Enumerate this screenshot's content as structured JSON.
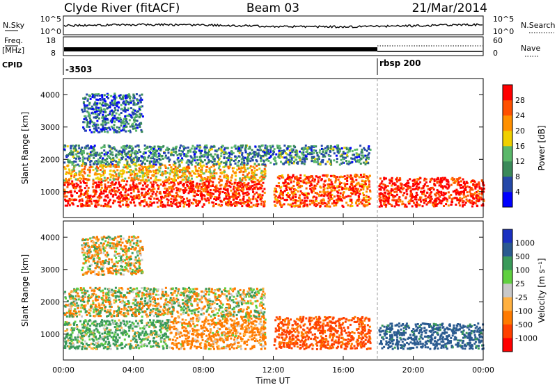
{
  "header": {
    "station": "Clyde River (fitACF)",
    "beam": "Beam 03",
    "date": "21/Mar/2014"
  },
  "status_panel": {
    "nsky_label": "N.Sky",
    "nsearch_label": "N.Search",
    "nsky_ticks": [
      "10^5",
      "10^0"
    ],
    "nsearch_ticks": [
      "10^5",
      "10^0"
    ],
    "freq_label_line1": "Freq.",
    "freq_label_line2": "[MHz]",
    "freq_ticks": [
      "18",
      "8"
    ],
    "nave_label": "Nave",
    "nave_ticks": [
      "60",
      "0"
    ],
    "cpid_label": "CPID",
    "cpid_segments": [
      {
        "start_hour": 0,
        "label": "-3503"
      },
      {
        "start_hour": 18,
        "label": "rbsp 200"
      }
    ]
  },
  "colors": {
    "power_scale": [
      "#0000ff",
      "#2548a8",
      "#3a8a5a",
      "#5ab86a",
      "#f0d000",
      "#ff9000",
      "#ff5000",
      "#ff0000"
    ],
    "velocity_scale": [
      "#ff0000",
      "#ff4000",
      "#ff7a00",
      "#ffb040",
      "#c8c8c8",
      "#60d040",
      "#3a9a5a",
      "#2a5a90",
      "#1a30c0"
    ]
  },
  "chart_data": [
    {
      "type": "heatmap",
      "name": "power",
      "xlabel": "",
      "ylabel": "Slant Range [km]",
      "xlim_hours": [
        0,
        24
      ],
      "ylim_km": [
        200,
        4500
      ],
      "yticks": [
        1000,
        2000,
        3000,
        4000
      ],
      "colorbar": {
        "label": "Power [dB]",
        "min": 0,
        "max": 32,
        "ticks": [
          4,
          8,
          12,
          16,
          20,
          24,
          28
        ]
      },
      "field_summary": [
        {
          "t0": 0,
          "t1": 11.5,
          "r0": 500,
          "r1": 1300,
          "value": 29
        },
        {
          "t0": 0,
          "t1": 11.5,
          "r0": 1300,
          "r1": 1800,
          "value": 20
        },
        {
          "t0": 0,
          "t1": 17.5,
          "r0": 1800,
          "r1": 2400,
          "value": 10
        },
        {
          "t0": 12,
          "t1": 17.5,
          "r0": 500,
          "r1": 1500,
          "value": 26
        },
        {
          "t0": 18,
          "t1": 24,
          "r0": 500,
          "r1": 1400,
          "value": 30
        },
        {
          "t0": 1,
          "t1": 4.5,
          "r0": 2800,
          "r1": 4000,
          "value": 8
        }
      ]
    },
    {
      "type": "heatmap",
      "name": "velocity",
      "xlabel": "Time UT",
      "ylabel": "Slant Range [km]",
      "xlim_hours": [
        0,
        24
      ],
      "ylim_km": [
        200,
        4500
      ],
      "yticks": [
        1000,
        2000,
        3000,
        4000
      ],
      "xticks": [
        "00:00",
        "04:00",
        "08:00",
        "12:00",
        "16:00",
        "20:00",
        "00:00"
      ],
      "colorbar": {
        "label": "Velocity [m s⁻¹]",
        "ticks": [
          "1000",
          "500",
          "100",
          "25",
          "-25",
          "-100",
          "-500",
          "-1000"
        ]
      },
      "field_summary": [
        {
          "t0": 0,
          "t1": 6,
          "r0": 500,
          "r1": 1400,
          "value": 150
        },
        {
          "t0": 6,
          "t1": 11.5,
          "r0": 500,
          "r1": 1500,
          "value": -200
        },
        {
          "t0": 0,
          "t1": 11.5,
          "r0": 1500,
          "r1": 2400,
          "value": 0
        },
        {
          "t0": 12,
          "t1": 17.5,
          "r0": 500,
          "r1": 1500,
          "value": -600
        },
        {
          "t0": 18,
          "t1": 24,
          "r0": 500,
          "r1": 1300,
          "value": 700
        },
        {
          "t0": 1,
          "t1": 4.5,
          "r0": 2800,
          "r1": 4000,
          "value": -60
        }
      ]
    }
  ]
}
